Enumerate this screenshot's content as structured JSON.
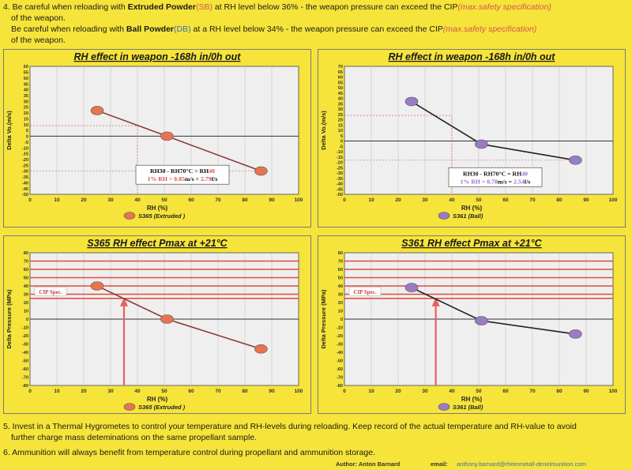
{
  "notes_top": {
    "item4_prefix": "4. Be careful when reloading with ",
    "item4_powder": "Extruded Powder",
    "item4_code": "(SB)",
    "item4_mid": " at RH level below 36% - the weapon pressure can exceed the CIP",
    "item4_spec": "(max.safety specification)",
    "item4_end": "of the weapon.",
    "ball_prefix": "Be careful when reloading with ",
    "ball_powder": "Ball Powder",
    "ball_code": "(DB)",
    "ball_mid": " at a RH level below 34% - the weapon pressure can exceed the CIP",
    "ball_spec": "(max.safety specification)",
    "ball_end": "of the weapon."
  },
  "notes_bottom": {
    "item5_line1": "5. Invest in a Thermal Hygrometes to control your temperature and RH-levels during reloading. Keep record of the actual temperature and RH-value to avoid",
    "item5_line2": "further charge mass deteminations on the same propellant sample.",
    "item6": "6. Ammunition will always benefit from temperature control during propellant and ammunition storage."
  },
  "footer": {
    "author": "Author: Anton Barnard",
    "email_label": "email:",
    "email": "anthony.barnard@rheinmetall-denelmunition.com"
  },
  "colors": {
    "page_bg": "#f6e43a",
    "plot_bg": "#efefef",
    "extruded_marker": "#e8734f",
    "ball_marker": "#9a7bc4",
    "ref_line": "#e34a3a",
    "arrow": "#e86060"
  },
  "chart_data": [
    {
      "type": "line",
      "title": "RH effect in weapon -168h in/0h out",
      "xlabel": "RH (%)",
      "ylabel": "Delta Vo.(m/s)",
      "xlim": [
        0,
        100
      ],
      "ylim": [
        -50,
        60
      ],
      "xticks": [
        "0",
        "10",
        "20",
        "30",
        "40",
        "50",
        "60",
        "70",
        "80",
        "90",
        "100"
      ],
      "yticks": [
        "60",
        "55",
        "50",
        "45",
        "40",
        "35",
        "30",
        "25",
        "20",
        "15",
        "10",
        "5",
        "0",
        "-5",
        "-10",
        "-15",
        "-20",
        "-25",
        "-30",
        "-35",
        "-40",
        "-45",
        "-50"
      ],
      "series": [
        {
          "name": "S365 (Extruded )",
          "x": [
            25,
            51,
            86
          ],
          "y": [
            22,
            0,
            -30
          ]
        }
      ],
      "annotation": {
        "rh30": "RH30 - RH70°C = RH",
        "rh40": "40",
        "line2_pre": "1% RH = ",
        "coef": "0.85",
        "unit": "m/s = ",
        "fps": "2.79",
        "fps_unit": "f/s"
      },
      "grid": true,
      "legend": "bottom-center"
    },
    {
      "type": "line",
      "title": "RH effect in weapon -168h in/0h out",
      "xlabel": "RH (%)",
      "ylabel": "Delta Vo.(m/s)",
      "xlim": [
        0,
        100
      ],
      "ylim": [
        -50,
        70
      ],
      "xticks": [
        "0",
        "10",
        "20",
        "30",
        "40",
        "50",
        "60",
        "70",
        "80",
        "90",
        "100"
      ],
      "yticks": [
        "70",
        "65",
        "60",
        "55",
        "50",
        "45",
        "40",
        "35",
        "30",
        "25",
        "20",
        "15",
        "10",
        "5",
        "0",
        "-5",
        "-10",
        "-15",
        "-20",
        "-25",
        "-30",
        "-35",
        "-40",
        "-45",
        "-50"
      ],
      "series": [
        {
          "name": "S361 (Ball)",
          "x": [
            25,
            51,
            86
          ],
          "y": [
            37,
            -3,
            -18
          ]
        }
      ],
      "annotation": {
        "rh30": "RH30 - RH70°C = RH",
        "rh40": "40",
        "line2_pre": "1% RH = ",
        "coef": "0.78",
        "unit": "m/s = ",
        "fps": "2.54",
        "fps_unit": "f/s"
      },
      "grid": true,
      "legend": "bottom-center"
    },
    {
      "type": "line",
      "title": "S365 RH effect Pmax at +21°C",
      "xlabel": "RH (%)",
      "ylabel": "Delta Pressure (MPa)",
      "xlim": [
        0,
        100
      ],
      "ylim": [
        -80,
        80
      ],
      "xticks": [
        "0",
        "10",
        "20",
        "30",
        "40",
        "50",
        "60",
        "70",
        "80",
        "90",
        "100"
      ],
      "yticks": [
        "80",
        "70",
        "60",
        "50",
        "40",
        "30",
        "20",
        "10",
        "0",
        "-10",
        "-20",
        "-30",
        "-40",
        "-50",
        "-60",
        "-70",
        "-80"
      ],
      "series": [
        {
          "name": "S365 (Extruded )",
          "x": [
            25,
            51,
            86
          ],
          "y": [
            40,
            0,
            -36
          ]
        }
      ],
      "cip_label": "CIP Spec.",
      "cip_lines": [
        25,
        30,
        40,
        50,
        60,
        70
      ],
      "arrow_x": 35,
      "grid": true,
      "legend": "bottom-center"
    },
    {
      "type": "line",
      "title": "S361 RH effect Pmax at +21°C",
      "xlabel": "RH (%)",
      "ylabel": "Delta Pressure (MPa)",
      "xlim": [
        0,
        100
      ],
      "ylim": [
        -80,
        80
      ],
      "xticks": [
        "0",
        "10",
        "20",
        "30",
        "40",
        "50",
        "60",
        "70",
        "80",
        "90",
        "100"
      ],
      "yticks": [
        "80",
        "70",
        "60",
        "50",
        "40",
        "30",
        "20",
        "10",
        "0",
        "-10",
        "-20",
        "-30",
        "-40",
        "-50",
        "-60",
        "-70",
        "-80"
      ],
      "series": [
        {
          "name": "S361 (Ball)",
          "x": [
            25,
            51,
            86
          ],
          "y": [
            38,
            -2,
            -18
          ]
        }
      ],
      "cip_label": "CIP Spec.",
      "cip_lines": [
        25,
        30,
        40,
        50,
        60,
        70
      ],
      "arrow_x": 34,
      "grid": true,
      "legend": "bottom-center"
    }
  ]
}
